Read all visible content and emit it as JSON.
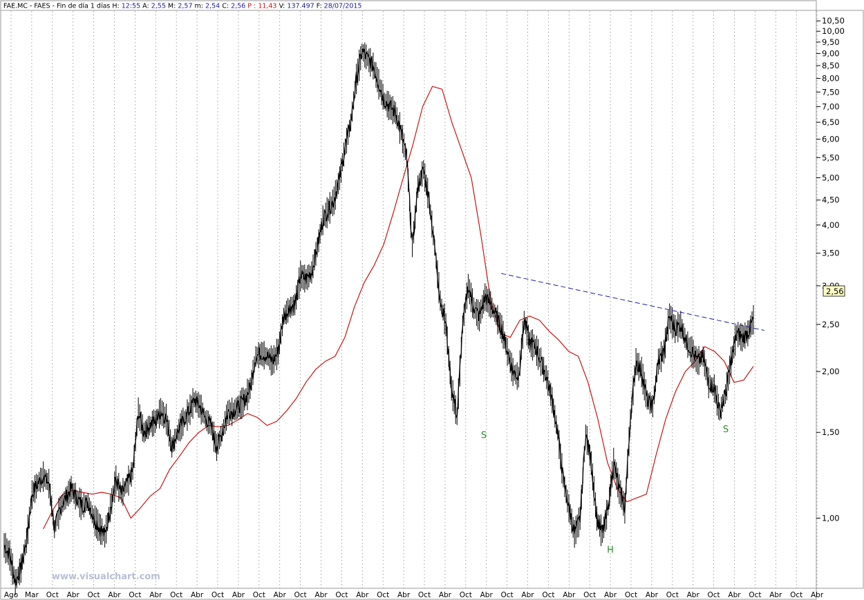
{
  "header": {
    "symbol": "FAE.MC - FAES - Fin de día 1 días",
    "fields": [
      {
        "label": "H:",
        "value": "12:55",
        "color": "#1a1aa6"
      },
      {
        "label": "A:",
        "value": "2,55",
        "color": "#1a1aa6"
      },
      {
        "label": "M:",
        "value": "2,57",
        "color": "#1a1aa6"
      },
      {
        "label": "m:",
        "value": "2,54",
        "color": "#1a1aa6"
      },
      {
        "label": "C:",
        "value": "2,56",
        "color": "#1a1aa6"
      },
      {
        "label": "P :",
        "value": "11,43",
        "color": "#d01010"
      },
      {
        "label": "V:",
        "value": "137.497",
        "color": "#1a1aa6"
      },
      {
        "label": "F:",
        "value": "28/07/2015",
        "color": "#1a1aa6"
      }
    ]
  },
  "watermark": "www.visualchart.com",
  "colors": {
    "price": "#000000",
    "moving_average": "#d01010",
    "trendline": "#1a1ab0",
    "annotation": "#2a8a2a",
    "grid": "#8a8a8a"
  },
  "chart_data": {
    "type": "line",
    "scale": "log",
    "grid": "vertical-dotted",
    "ylim": [
      0.72,
      11.0
    ],
    "y_ticks": [
      1.0,
      1.5,
      2.0,
      2.5,
      3.0,
      3.5,
      4.0,
      4.5,
      5.0,
      5.5,
      6.0,
      6.5,
      7.0,
      7.5,
      8.0,
      8.5,
      9.0,
      9.5,
      10.0,
      10.5
    ],
    "y_tick_labels": [
      "1,00",
      "1,50",
      "2,00",
      "2,50",
      "3,00",
      "3,50",
      "4,00",
      "4,50",
      "5,00",
      "5,50",
      "6,00",
      "6,50",
      "7,00",
      "7,50",
      "8,00",
      "8,50",
      "9,00",
      "9,50",
      "10,00",
      "10,50"
    ],
    "x_tick_labels": [
      "Ago",
      "Mar",
      "Oct",
      "Abr",
      "Oct",
      "Abr",
      "Oct",
      "Abr",
      "Oct",
      "Abr",
      "Oct",
      "Abr",
      "Oct",
      "Abr",
      "Oct",
      "Abr",
      "Oct",
      "Abr",
      "Oct",
      "Abr",
      "Oct",
      "Abr",
      "Oct",
      "Abr",
      "Oct",
      "Abr",
      "Oct",
      "Abr",
      "Oct",
      "Abr",
      "Oct",
      "Abr",
      "Oct",
      "Abr",
      "Oct",
      "Abr",
      "Oct",
      "Abr",
      "Oct",
      "Abr"
    ],
    "last_value_label": "2,56",
    "last_value": 2.56,
    "series": [
      {
        "style": "price-bars",
        "values": [
          0.88,
          0.84,
          0.74,
          0.79,
          0.9,
          1.12,
          1.18,
          1.22,
          1.18,
          0.95,
          1.05,
          1.1,
          1.15,
          1.1,
          1.06,
          1.08,
          1.0,
          0.96,
          0.92,
          1.05,
          1.2,
          1.12,
          1.18,
          1.25,
          1.65,
          1.5,
          1.55,
          1.58,
          1.66,
          1.6,
          1.4,
          1.5,
          1.58,
          1.65,
          1.75,
          1.7,
          1.6,
          1.55,
          1.4,
          1.5,
          1.65,
          1.66,
          1.7,
          1.75,
          1.85,
          2.15,
          2.18,
          2.15,
          2.1,
          2.2,
          2.6,
          2.7,
          2.75,
          3.15,
          3.1,
          3.2,
          3.6,
          4.1,
          4.3,
          4.5,
          5.0,
          5.8,
          6.5,
          8.0,
          9.1,
          8.8,
          8.5,
          7.8,
          7.2,
          7.0,
          6.8,
          6.2,
          5.5,
          3.6,
          4.8,
          5.2,
          4.5,
          3.6,
          2.8,
          2.5,
          1.85,
          1.62,
          2.5,
          3.0,
          2.7,
          2.6,
          2.85,
          2.75,
          2.6,
          2.45,
          2.2,
          2.0,
          1.95,
          2.55,
          2.3,
          2.25,
          2.1,
          1.95,
          1.75,
          1.5,
          1.2,
          1.05,
          0.93,
          1.0,
          1.5,
          1.3,
          1.0,
          0.93,
          1.05,
          1.3,
          1.15,
          1.05,
          1.6,
          2.1,
          2.0,
          1.75,
          1.7,
          2.1,
          2.2,
          2.6,
          2.45,
          2.5,
          2.3,
          2.2,
          2.1,
          2.15,
          1.9,
          1.85,
          1.65,
          1.8,
          2.1,
          2.4,
          2.35,
          2.4,
          2.56
        ]
      },
      {
        "name": "",
        "style": "moving-average",
        "start": 7,
        "values": [
          0.95,
          1.04,
          1.12,
          1.14,
          1.13,
          1.12,
          1.13,
          1.12,
          1.1,
          1.0,
          1.05,
          1.11,
          1.15,
          1.26,
          1.34,
          1.43,
          1.5,
          1.55,
          1.54,
          1.55,
          1.59,
          1.64,
          1.61,
          1.55,
          1.58,
          1.66,
          1.76,
          1.9,
          2.02,
          2.1,
          2.15,
          2.35,
          2.72,
          3.05,
          3.3,
          3.65,
          4.25,
          5.0,
          5.85,
          7.0,
          7.7,
          7.6,
          6.5,
          5.7,
          5.0,
          3.8,
          2.8,
          2.4,
          2.35,
          2.55,
          2.6,
          2.55,
          2.42,
          2.32,
          2.2,
          2.15,
          1.9,
          1.6,
          1.3,
          1.15,
          1.08,
          1.1,
          1.12,
          1.35,
          1.6,
          1.82,
          2.0,
          2.1,
          2.25,
          2.2,
          2.1,
          1.9,
          1.92,
          2.05
        ]
      },
      {
        "name": "",
        "style": "trendline",
        "x": [
          0.61,
          0.95
        ],
        "values": [
          3.18,
          2.43
        ]
      }
    ],
    "annotations": [
      {
        "text": "S",
        "x": 0.6,
        "y": 1.48
      },
      {
        "text": "H",
        "x": 0.76,
        "y": 0.86
      },
      {
        "text": "S",
        "x": 0.9,
        "y": 1.52
      }
    ]
  }
}
